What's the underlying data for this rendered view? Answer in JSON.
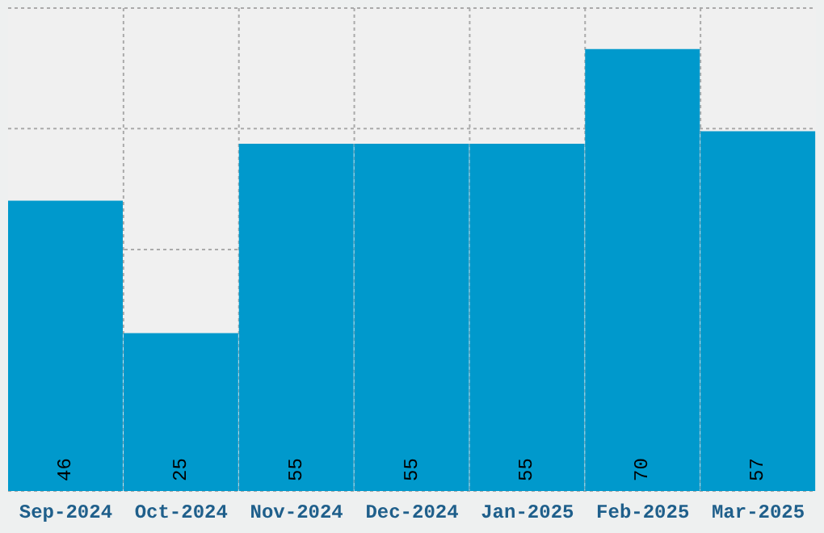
{
  "chart_data": {
    "type": "bar",
    "categories": [
      "Sep-2024",
      "Oct-2024",
      "Nov-2024",
      "Dec-2024",
      "Jan-2025",
      "Feb-2025",
      "Mar-2025"
    ],
    "values": [
      46,
      25,
      55,
      55,
      55,
      70,
      57
    ],
    "color": "#0099cc",
    "ylim": [
      0,
      76.5
    ],
    "yticks": [
      {
        "value": 0,
        "label": null
      },
      {
        "value": 19.1,
        "label": null
      },
      {
        "value": 38.25,
        "label": null
      },
      {
        "value": 57.4,
        "label": null
      },
      {
        "value": 76.5,
        "label": null
      }
    ],
    "tick_labels": "x",
    "grid": true,
    "data_labels": true
  }
}
